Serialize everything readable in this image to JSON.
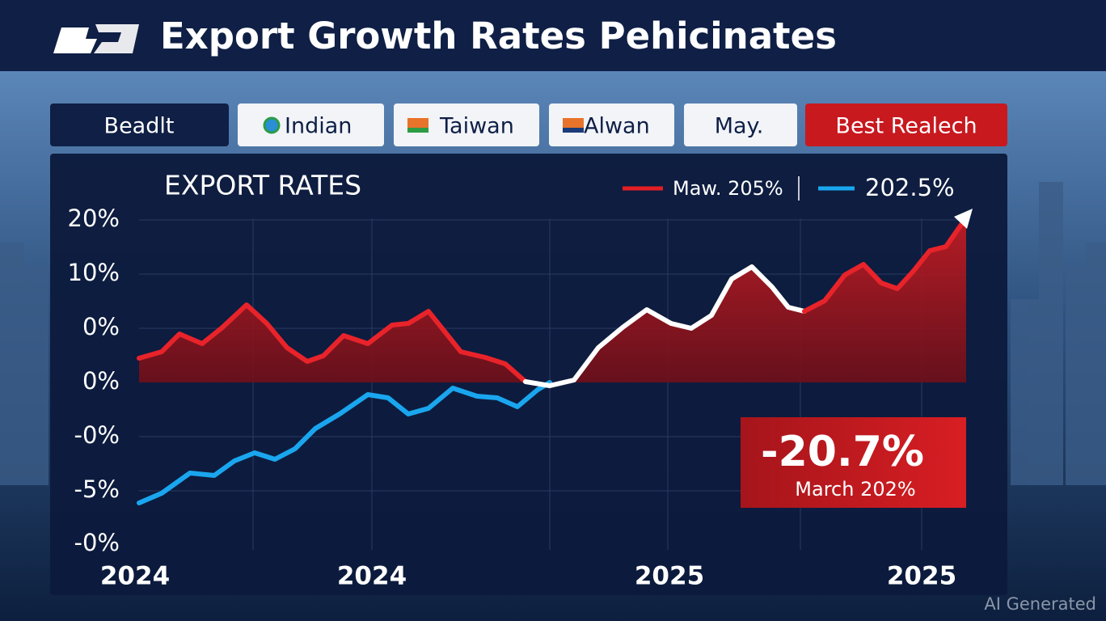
{
  "header": {
    "title": "Export Growth Rates Pehicinates"
  },
  "tabs": [
    "Beadlt",
    "Indian",
    "Taiwan",
    "Alwan",
    "May.",
    "Best Realech"
  ],
  "panel": {
    "title": "EXPORT RATES",
    "legend": [
      "Maw. 205%",
      "202.5%"
    ],
    "y_axis_labels": [
      "20%",
      "10%",
      "0%",
      "0%",
      "-0%",
      "-5%",
      "-0%"
    ],
    "x_axis_labels": [
      "2024",
      "2024",
      "2025",
      "2025"
    ],
    "annotation": {
      "value": "-20.7%",
      "caption": "March 202%"
    }
  },
  "watermark": "AI Generated"
}
